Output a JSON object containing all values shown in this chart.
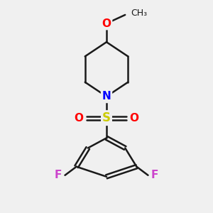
{
  "background_color": "#f0f0f0",
  "bond_color": "#1a1a1a",
  "bond_width": 1.8,
  "atom_colors": {
    "N": "#0000ff",
    "O": "#ff0000",
    "S": "#cccc00",
    "F": "#cc44cc",
    "C": "#1a1a1a"
  },
  "figsize": [
    3.0,
    3.0
  ],
  "dpi": 100
}
